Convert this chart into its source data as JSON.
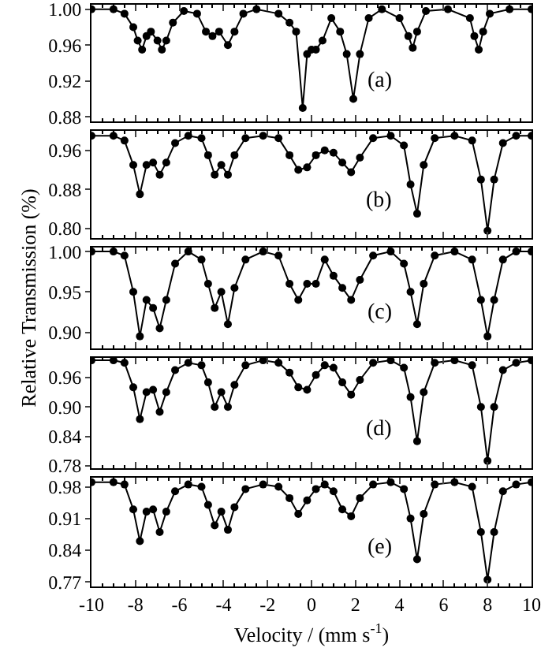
{
  "chart_data": [
    {
      "type": "line",
      "annotations": [
        "(a)"
      ],
      "xlim": [
        -10,
        10
      ],
      "xticks": [
        -10,
        -8,
        -6,
        -4,
        -2,
        0,
        2,
        4,
        6,
        8,
        10
      ],
      "ylim": [
        0.875,
        1.005
      ],
      "yticks": [
        0.88,
        0.92,
        0.96,
        {
          "value": 1,
          "label": "1.00"
        }
      ],
      "tick_labels": "y",
      "grid": false,
      "marker": "circle",
      "line_style": "solid",
      "series": [
        {
          "color": "#000000",
          "x": [
            -10,
            -9,
            -8.5,
            -8.1,
            -7.9,
            -7.7,
            -7.5,
            -7.3,
            -7.0,
            -6.8,
            -6.6,
            -6.3,
            -5.8,
            -5.2,
            -4.8,
            -4.5,
            -4.2,
            -3.8,
            -3.5,
            -3.1,
            -2.5,
            -1.5,
            -1.0,
            -0.7,
            -0.4,
            -0.2,
            0,
            0.2,
            0.5,
            0.9,
            1.3,
            1.6,
            1.9,
            2.2,
            2.6,
            3.2,
            4.0,
            4.4,
            4.6,
            4.8,
            5.2,
            6.2,
            7.2,
            7.4,
            7.6,
            7.8,
            8.1,
            9,
            10
          ],
          "values": [
            1.0,
            1.0,
            0.995,
            0.98,
            0.965,
            0.955,
            0.97,
            0.975,
            0.965,
            0.955,
            0.965,
            0.985,
            0.998,
            0.995,
            0.975,
            0.97,
            0.975,
            0.96,
            0.975,
            0.995,
            1.0,
            0.995,
            0.985,
            0.975,
            0.89,
            0.95,
            0.955,
            0.955,
            0.965,
            0.99,
            0.975,
            0.95,
            0.9,
            0.95,
            0.99,
            1.0,
            0.99,
            0.97,
            0.957,
            0.975,
            0.998,
            1.0,
            0.99,
            0.97,
            0.955,
            0.975,
            0.995,
            1.0,
            1.0
          ]
        }
      ]
    },
    {
      "type": "line",
      "annotations": [
        "(b)"
      ],
      "xlim": [
        -10,
        10
      ],
      "xticks": [
        -10,
        -8,
        -6,
        -4,
        -2,
        0,
        2,
        4,
        6,
        8,
        10
      ],
      "ylim": [
        0.78,
        1.0
      ],
      "yticks": [
        {
          "value": 0.8,
          "label": "0.80"
        },
        0.88,
        0.96
      ],
      "tick_labels": "y",
      "grid": false,
      "marker": "circle",
      "line_style": "solid",
      "series": [
        {
          "color": "#000000",
          "x": [
            -10,
            -9,
            -8.5,
            -8.1,
            -7.8,
            -7.5,
            -7.2,
            -6.9,
            -6.6,
            -6.2,
            -5.6,
            -5.0,
            -4.7,
            -4.4,
            -4.1,
            -3.8,
            -3.5,
            -3.0,
            -2.2,
            -1.5,
            -1.0,
            -0.6,
            -0.2,
            0.2,
            0.6,
            1.0,
            1.4,
            1.8,
            2.2,
            2.8,
            3.6,
            4.2,
            4.5,
            4.8,
            5.1,
            5.6,
            6.5,
            7.3,
            7.7,
            8.0,
            8.3,
            8.7,
            9.3,
            10
          ],
          "values": [
            0.99,
            0.99,
            0.98,
            0.93,
            0.87,
            0.93,
            0.935,
            0.91,
            0.935,
            0.975,
            0.99,
            0.985,
            0.95,
            0.91,
            0.93,
            0.91,
            0.95,
            0.985,
            0.99,
            0.985,
            0.95,
            0.92,
            0.925,
            0.95,
            0.96,
            0.955,
            0.935,
            0.915,
            0.945,
            0.985,
            0.99,
            0.97,
            0.89,
            0.83,
            0.93,
            0.985,
            0.99,
            0.98,
            0.9,
            0.795,
            0.9,
            0.975,
            0.99,
            0.99
          ]
        }
      ]
    },
    {
      "type": "line",
      "ylabel": "Relative Transmission (%)",
      "annotations": [
        "(c)"
      ],
      "xlim": [
        -10,
        10
      ],
      "xticks": [
        -10,
        -8,
        -6,
        -4,
        -2,
        0,
        2,
        4,
        6,
        8,
        10
      ],
      "ylim": [
        0.88,
        1.005
      ],
      "yticks": [
        {
          "value": 0.9,
          "label": "0.90"
        },
        0.95,
        {
          "value": 1,
          "label": "1.00"
        }
      ],
      "tick_labels": "y",
      "grid": false,
      "marker": "circle",
      "line_style": "solid",
      "series": [
        {
          "color": "#000000",
          "x": [
            -10,
            -9,
            -8.5,
            -8.1,
            -7.8,
            -7.5,
            -7.2,
            -6.9,
            -6.6,
            -6.2,
            -5.6,
            -5.0,
            -4.7,
            -4.4,
            -4.1,
            -3.8,
            -3.5,
            -3.0,
            -2.2,
            -1.5,
            -1.0,
            -0.6,
            -0.2,
            0.2,
            0.6,
            1.0,
            1.4,
            1.8,
            2.2,
            2.8,
            3.6,
            4.2,
            4.5,
            4.8,
            5.1,
            5.6,
            6.5,
            7.3,
            7.7,
            8.0,
            8.3,
            8.7,
            9.3,
            10
          ],
          "values": [
            1.0,
            1.0,
            0.995,
            0.95,
            0.895,
            0.94,
            0.93,
            0.905,
            0.94,
            0.985,
            1.0,
            0.99,
            0.96,
            0.93,
            0.95,
            0.91,
            0.955,
            0.99,
            1.0,
            0.995,
            0.96,
            0.94,
            0.96,
            0.96,
            0.99,
            0.97,
            0.955,
            0.94,
            0.965,
            0.995,
            1.0,
            0.985,
            0.95,
            0.91,
            0.96,
            0.995,
            1.0,
            0.99,
            0.94,
            0.895,
            0.94,
            0.99,
            1.0,
            1.0
          ]
        }
      ]
    },
    {
      "type": "line",
      "annotations": [
        "(d)"
      ],
      "xlim": [
        -10,
        10
      ],
      "xticks": [
        -10,
        -8,
        -6,
        -4,
        -2,
        0,
        2,
        4,
        6,
        8,
        10
      ],
      "ylim": [
        0.775,
        1.0
      ],
      "yticks": [
        0.78,
        0.84,
        {
          "value": 0.9,
          "label": "0.90"
        },
        0.96
      ],
      "tick_labels": "y",
      "grid": false,
      "marker": "circle",
      "line_style": "solid",
      "series": [
        {
          "color": "#000000",
          "x": [
            -10,
            -9,
            -8.5,
            -8.1,
            -7.8,
            -7.5,
            -7.2,
            -6.9,
            -6.6,
            -6.2,
            -5.6,
            -5.0,
            -4.7,
            -4.4,
            -4.1,
            -3.8,
            -3.5,
            -3.0,
            -2.2,
            -1.5,
            -1.0,
            -0.6,
            -0.2,
            0.2,
            0.6,
            1.0,
            1.4,
            1.8,
            2.2,
            2.8,
            3.6,
            4.2,
            4.5,
            4.8,
            5.1,
            5.6,
            6.5,
            7.3,
            7.7,
            8.0,
            8.3,
            8.7,
            9.3,
            10
          ],
          "values": [
            0.995,
            0.995,
            0.99,
            0.94,
            0.875,
            0.93,
            0.935,
            0.89,
            0.93,
            0.975,
            0.99,
            0.985,
            0.95,
            0.9,
            0.93,
            0.9,
            0.945,
            0.985,
            0.995,
            0.99,
            0.97,
            0.94,
            0.935,
            0.965,
            0.985,
            0.98,
            0.95,
            0.925,
            0.955,
            0.99,
            0.995,
            0.98,
            0.92,
            0.83,
            0.93,
            0.99,
            0.995,
            0.985,
            0.9,
            0.79,
            0.9,
            0.975,
            0.99,
            0.995
          ]
        }
      ]
    },
    {
      "type": "line",
      "xlabel": "Velocity / (mm s$^{-1}$)",
      "annotations": [
        "(e)"
      ],
      "xlim": [
        -10,
        10
      ],
      "xticks": [
        -10,
        -8,
        -6,
        -4,
        -2,
        0,
        2,
        4,
        6,
        8,
        10
      ],
      "ylim": [
        0.76,
        1.0
      ],
      "yticks": [
        0.77,
        0.84,
        0.91,
        0.98
      ],
      "grid": false,
      "marker": "circle",
      "line_style": "solid",
      "series": [
        {
          "color": "#000000",
          "x": [
            -10,
            -9,
            -8.5,
            -8.1,
            -7.8,
            -7.5,
            -7.2,
            -6.9,
            -6.6,
            -6.2,
            -5.6,
            -5.0,
            -4.7,
            -4.4,
            -4.1,
            -3.8,
            -3.5,
            -3.0,
            -2.2,
            -1.5,
            -1.0,
            -0.6,
            -0.2,
            0.2,
            0.6,
            1.0,
            1.4,
            1.8,
            2.2,
            2.8,
            3.6,
            4.2,
            4.5,
            4.8,
            5.1,
            5.6,
            6.5,
            7.3,
            7.7,
            8.0,
            8.3,
            8.7,
            9.3,
            10
          ],
          "values": [
            0.99,
            0.99,
            0.985,
            0.93,
            0.86,
            0.925,
            0.93,
            0.88,
            0.925,
            0.97,
            0.985,
            0.98,
            0.94,
            0.895,
            0.925,
            0.885,
            0.935,
            0.975,
            0.985,
            0.98,
            0.955,
            0.92,
            0.95,
            0.975,
            0.985,
            0.97,
            0.93,
            0.915,
            0.955,
            0.985,
            0.99,
            0.975,
            0.91,
            0.82,
            0.92,
            0.985,
            0.99,
            0.98,
            0.88,
            0.775,
            0.88,
            0.97,
            0.985,
            0.99
          ]
        }
      ]
    }
  ]
}
